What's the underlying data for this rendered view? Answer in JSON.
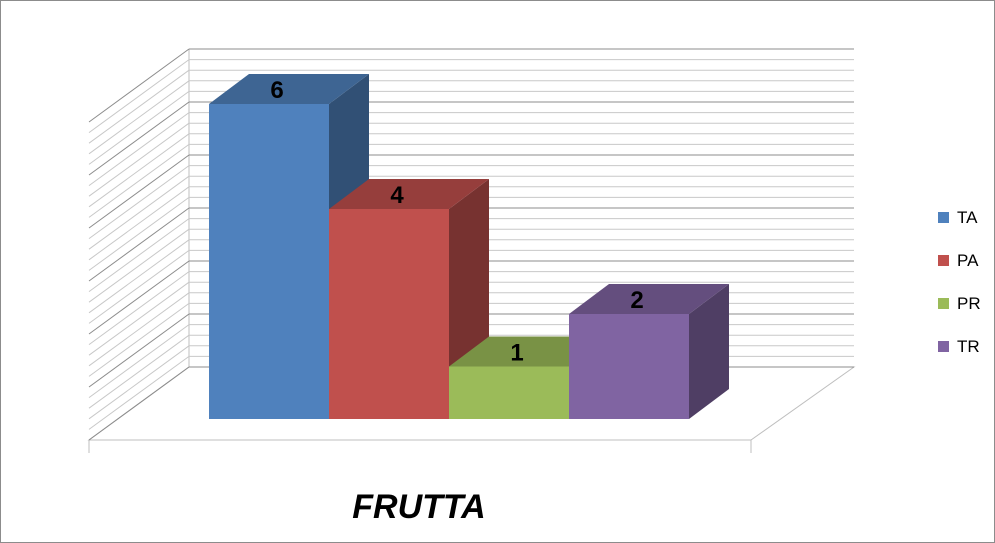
{
  "chart_data": {
    "type": "bar",
    "style": "3d-clustered-column",
    "categories": [
      "FRUTTA"
    ],
    "xlabel": "FRUTTA",
    "ylabel": "",
    "ylim": [
      0,
      6
    ],
    "grid": true,
    "legend_position": "right",
    "series": [
      {
        "name": "TA",
        "values": [
          6
        ],
        "color": "#4f81bd"
      },
      {
        "name": "PA",
        "values": [
          4
        ],
        "color": "#c0504d"
      },
      {
        "name": "PR",
        "values": [
          1
        ],
        "color": "#9bbb59"
      },
      {
        "name": "TR",
        "values": [
          2
        ],
        "color": "#8064a2"
      }
    ]
  }
}
